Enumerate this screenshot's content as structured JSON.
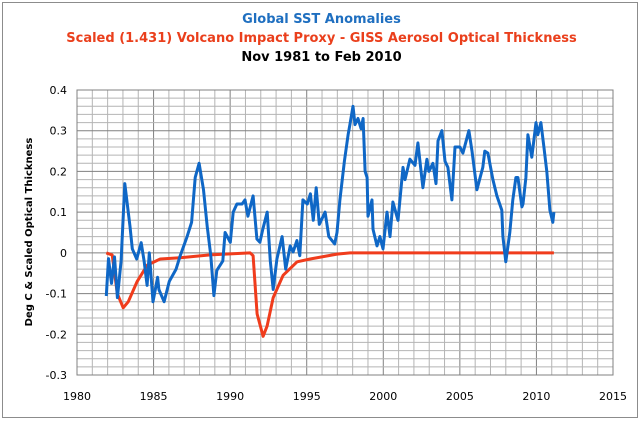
{
  "chart_data": {
    "type": "line",
    "title": "Global SST Anomalies",
    "subtitle": "Scaled (1.431) Volcano Impact Proxy - GISS Aerosol Optical Thickness",
    "subtitle2": "Nov 1981 to Feb 2010",
    "xlabel": "",
    "ylabel": "Deg C & Scaled  Optical Thickness",
    "xlim": [
      1980,
      2015
    ],
    "ylim": [
      -0.3,
      0.4
    ],
    "xticks": [
      "1980",
      "1985",
      "1990",
      "1995",
      "2000",
      "2005",
      "2010",
      "2015"
    ],
    "yticks": [
      "-0.3",
      "-0.2",
      "-0.1",
      "0",
      "0.1",
      "0.2",
      "0.3",
      "0.4"
    ],
    "grid": true,
    "legend": "none",
    "series": [
      {
        "name": "Global SST Anomalies",
        "color": "#0f67c6",
        "x": [
          1981.91,
          1982.06,
          1982.25,
          1982.45,
          1982.64,
          1982.88,
          1983.12,
          1983.46,
          1983.61,
          1983.9,
          1984.19,
          1984.38,
          1984.58,
          1984.72,
          1984.96,
          1985.26,
          1985.35,
          1985.69,
          1986.03,
          1986.47,
          1986.71,
          1987.19,
          1987.48,
          1987.72,
          1987.97,
          1988.26,
          1988.5,
          1988.74,
          1988.94,
          1989.13,
          1989.52,
          1989.67,
          1990.01,
          1990.2,
          1990.44,
          1990.78,
          1990.97,
          1991.16,
          1991.5,
          1991.75,
          1991.94,
          1992.13,
          1992.42,
          1992.62,
          1992.81,
          1993.05,
          1993.39,
          1993.63,
          1993.92,
          1994.11,
          1994.36,
          1994.55,
          1994.75,
          1995.04,
          1995.24,
          1995.43,
          1995.62,
          1995.82,
          1996.2,
          1996.44,
          1996.83,
          1996.98,
          1997.17,
          1997.46,
          1997.7,
          1997.82,
          1998.02,
          1998.15,
          1998.35,
          1998.55,
          1998.68,
          1998.81,
          1998.94,
          1999.0,
          1999.26,
          1999.33,
          1999.59,
          1999.78,
          1999.98,
          2000.24,
          2000.44,
          2000.63,
          2000.96,
          2001.29,
          2001.42,
          2001.74,
          2002.07,
          2002.26,
          2002.59,
          2002.85,
          2002.98,
          2003.24,
          2003.44,
          2003.57,
          2003.83,
          2004.03,
          2004.22,
          2004.48,
          2004.68,
          2005.0,
          2005.2,
          2005.59,
          2005.79,
          2006.11,
          2006.5,
          2006.63,
          2006.83,
          2007.16,
          2007.42,
          2007.74,
          2007.81,
          2008.0,
          2008.26,
          2008.46,
          2008.66,
          2008.79,
          2009.05,
          2009.12,
          2009.31,
          2009.44,
          2009.7,
          2009.97,
          2010.09,
          2010.29,
          2010.49,
          2010.68,
          2010.88,
          2011.07,
          2011.14
        ],
        "y": [
          -0.106,
          -0.014,
          -0.075,
          -0.01,
          -0.11,
          -0.02,
          0.17,
          0.065,
          0.01,
          -0.015,
          0.025,
          -0.02,
          -0.08,
          0.0,
          -0.12,
          -0.06,
          -0.09,
          -0.12,
          -0.07,
          -0.04,
          -0.01,
          0.04,
          0.075,
          0.185,
          0.22,
          0.155,
          0.065,
          -0.007,
          -0.105,
          -0.043,
          -0.02,
          0.05,
          0.026,
          0.1,
          0.12,
          0.12,
          0.13,
          0.09,
          0.14,
          0.034,
          0.026,
          0.058,
          0.1,
          -0.02,
          -0.09,
          -0.015,
          0.04,
          -0.04,
          0.017,
          0.002,
          0.03,
          -0.007,
          0.13,
          0.12,
          0.145,
          0.08,
          0.16,
          0.07,
          0.1,
          0.04,
          0.022,
          0.05,
          0.13,
          0.225,
          0.29,
          0.315,
          0.36,
          0.315,
          0.33,
          0.305,
          0.33,
          0.2,
          0.185,
          0.09,
          0.13,
          0.058,
          0.017,
          0.04,
          0.01,
          0.1,
          0.04,
          0.125,
          0.08,
          0.21,
          0.18,
          0.23,
          0.215,
          0.27,
          0.16,
          0.23,
          0.2,
          0.22,
          0.17,
          0.275,
          0.3,
          0.225,
          0.21,
          0.13,
          0.26,
          0.26,
          0.245,
          0.3,
          0.25,
          0.155,
          0.21,
          0.25,
          0.245,
          0.18,
          0.14,
          0.105,
          0.04,
          -0.022,
          0.05,
          0.13,
          0.185,
          0.185,
          0.113,
          0.12,
          0.185,
          0.29,
          0.235,
          0.32,
          0.29,
          0.32,
          0.26,
          0.2,
          0.105,
          0.075,
          0.1
        ]
      },
      {
        "name": "Scaled (1.431) Volcano Impact Proxy - GISS Aerosol Optical Thickness",
        "color": "#f03c1c",
        "x": [
          1981.91,
          1982.3,
          1982.63,
          1983.02,
          1983.35,
          1983.93,
          1984.59,
          1985.43,
          1986.74,
          1988.7,
          1991.31,
          1991.5,
          1991.76,
          1992.15,
          1992.41,
          1992.81,
          1993.46,
          1994.37,
          1995.22,
          1996.98,
          1997.83,
          2000.0,
          2005.0,
          2011.14
        ],
        "y": [
          0.0,
          -0.005,
          -0.1,
          -0.135,
          -0.12,
          -0.07,
          -0.03,
          -0.015,
          -0.012,
          -0.005,
          0.0,
          -0.007,
          -0.15,
          -0.205,
          -0.18,
          -0.11,
          -0.055,
          -0.022,
          -0.015,
          -0.003,
          0.0,
          0.0,
          0.0,
          0.0
        ]
      }
    ]
  }
}
